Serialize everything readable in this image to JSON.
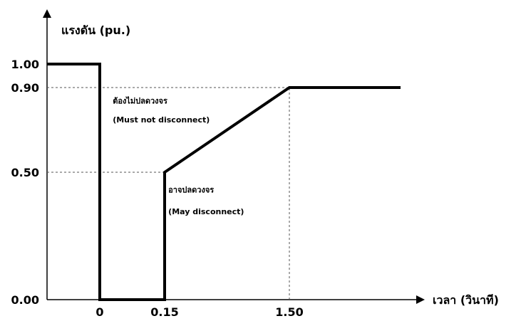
{
  "chart_data": {
    "type": "line",
    "ylabel": "แรงดัน  (pu.)",
    "xlabel": "เวลา  (วินาที)",
    "x_ticks": [
      {
        "label": "0",
        "value": 0
      },
      {
        "label": "0.15",
        "value": 0.15
      },
      {
        "label": "1.50",
        "value": 1.5
      }
    ],
    "y_ticks": [
      {
        "label": "1.00",
        "value": 1.0
      },
      {
        "label": "0.90",
        "value": 0.9
      },
      {
        "label": "0.50",
        "value": 0.5
      },
      {
        "label": "0.00",
        "value": 0.0
      }
    ],
    "series": [
      {
        "points": [
          {
            "x": -0.16,
            "y": 1.0
          },
          {
            "x": 0,
            "y": 1.0
          },
          {
            "x": 0,
            "y": 0.0
          },
          {
            "x": 0.15,
            "y": 0.0
          },
          {
            "x": 0.15,
            "y": 0.5
          },
          {
            "x": 1.5,
            "y": 0.9
          },
          {
            "x": 2.1,
            "y": 0.9
          }
        ]
      }
    ],
    "guides": [
      {
        "orientation": "horizontal",
        "y": 0.9,
        "x_from": -0.16,
        "x_to": 1.5
      },
      {
        "orientation": "horizontal",
        "y": 0.5,
        "x_from": -0.16,
        "x_to": 0.15
      },
      {
        "orientation": "vertical",
        "x": 1.5,
        "y_from": 0.0,
        "y_to": 0.9
      }
    ],
    "annotations": [
      {
        "text": "ต้องไม่ปลดวงจร",
        "x": 0.03,
        "y": 0.825
      },
      {
        "text": "(Must not disconnect)",
        "x": 0.03,
        "y": 0.735
      },
      {
        "text": "อาจปลดวงจร",
        "x": 0.19,
        "y": 0.42
      },
      {
        "text": "(May disconnect)",
        "x": 0.19,
        "y": 0.335
      }
    ],
    "xlim": [
      -0.16,
      2.7
    ],
    "ylim": [
      0.0,
      1.4
    ],
    "grid": false,
    "colors": {
      "line": "#000000",
      "guide": "#555555"
    }
  }
}
